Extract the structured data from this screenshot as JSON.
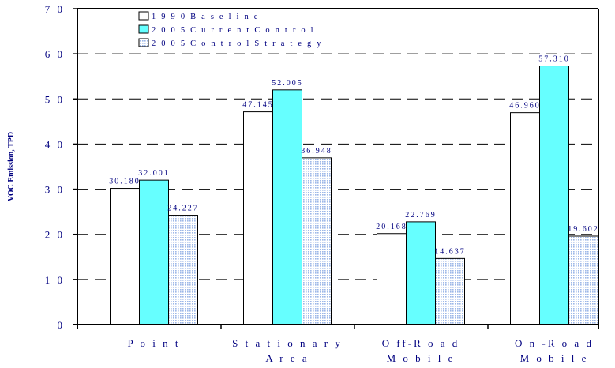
{
  "chart_data": {
    "type": "bar",
    "ylabel": "VOC Emission, TPD",
    "ylim": [
      0,
      70
    ],
    "yticks": [
      "0",
      "1 0",
      "2 0",
      "3 0",
      "4 0",
      "5 0",
      "6 0",
      "7 0"
    ],
    "grid": "dashed horizontal",
    "legend_position": "top-left",
    "categories": [
      [
        "P o i n t"
      ],
      [
        "S t a t i o n a r y",
        "A r e a"
      ],
      [
        "O ff-R o a d",
        "M o b i l e"
      ],
      [
        "O n -R o a d",
        "M o b i l e"
      ]
    ],
    "series": [
      {
        "name": "1 9 9 0  B a s e l i n e",
        "values": [
          30.18,
          47.145,
          20.168,
          46.96
        ],
        "labels": [
          "30.180",
          "47.145",
          "20.168",
          "46.960"
        ],
        "color": "#ffffff"
      },
      {
        "name": "2 0 0 5  C u r r e n t  C o n t r o l",
        "values": [
          32.001,
          52.005,
          22.769,
          57.31
        ],
        "labels": [
          "32.001",
          "52.005",
          "22.769",
          "57.310"
        ],
        "color": "#66ffff"
      },
      {
        "name": "2 0 0 5  C o n t r o l S t r a t e g y",
        "values": [
          24.227,
          36.948,
          14.637,
          19.602
        ],
        "labels": [
          "24.227",
          "36.948",
          "14.637",
          "19.602"
        ],
        "color": "#c8d8f0"
      }
    ]
  }
}
